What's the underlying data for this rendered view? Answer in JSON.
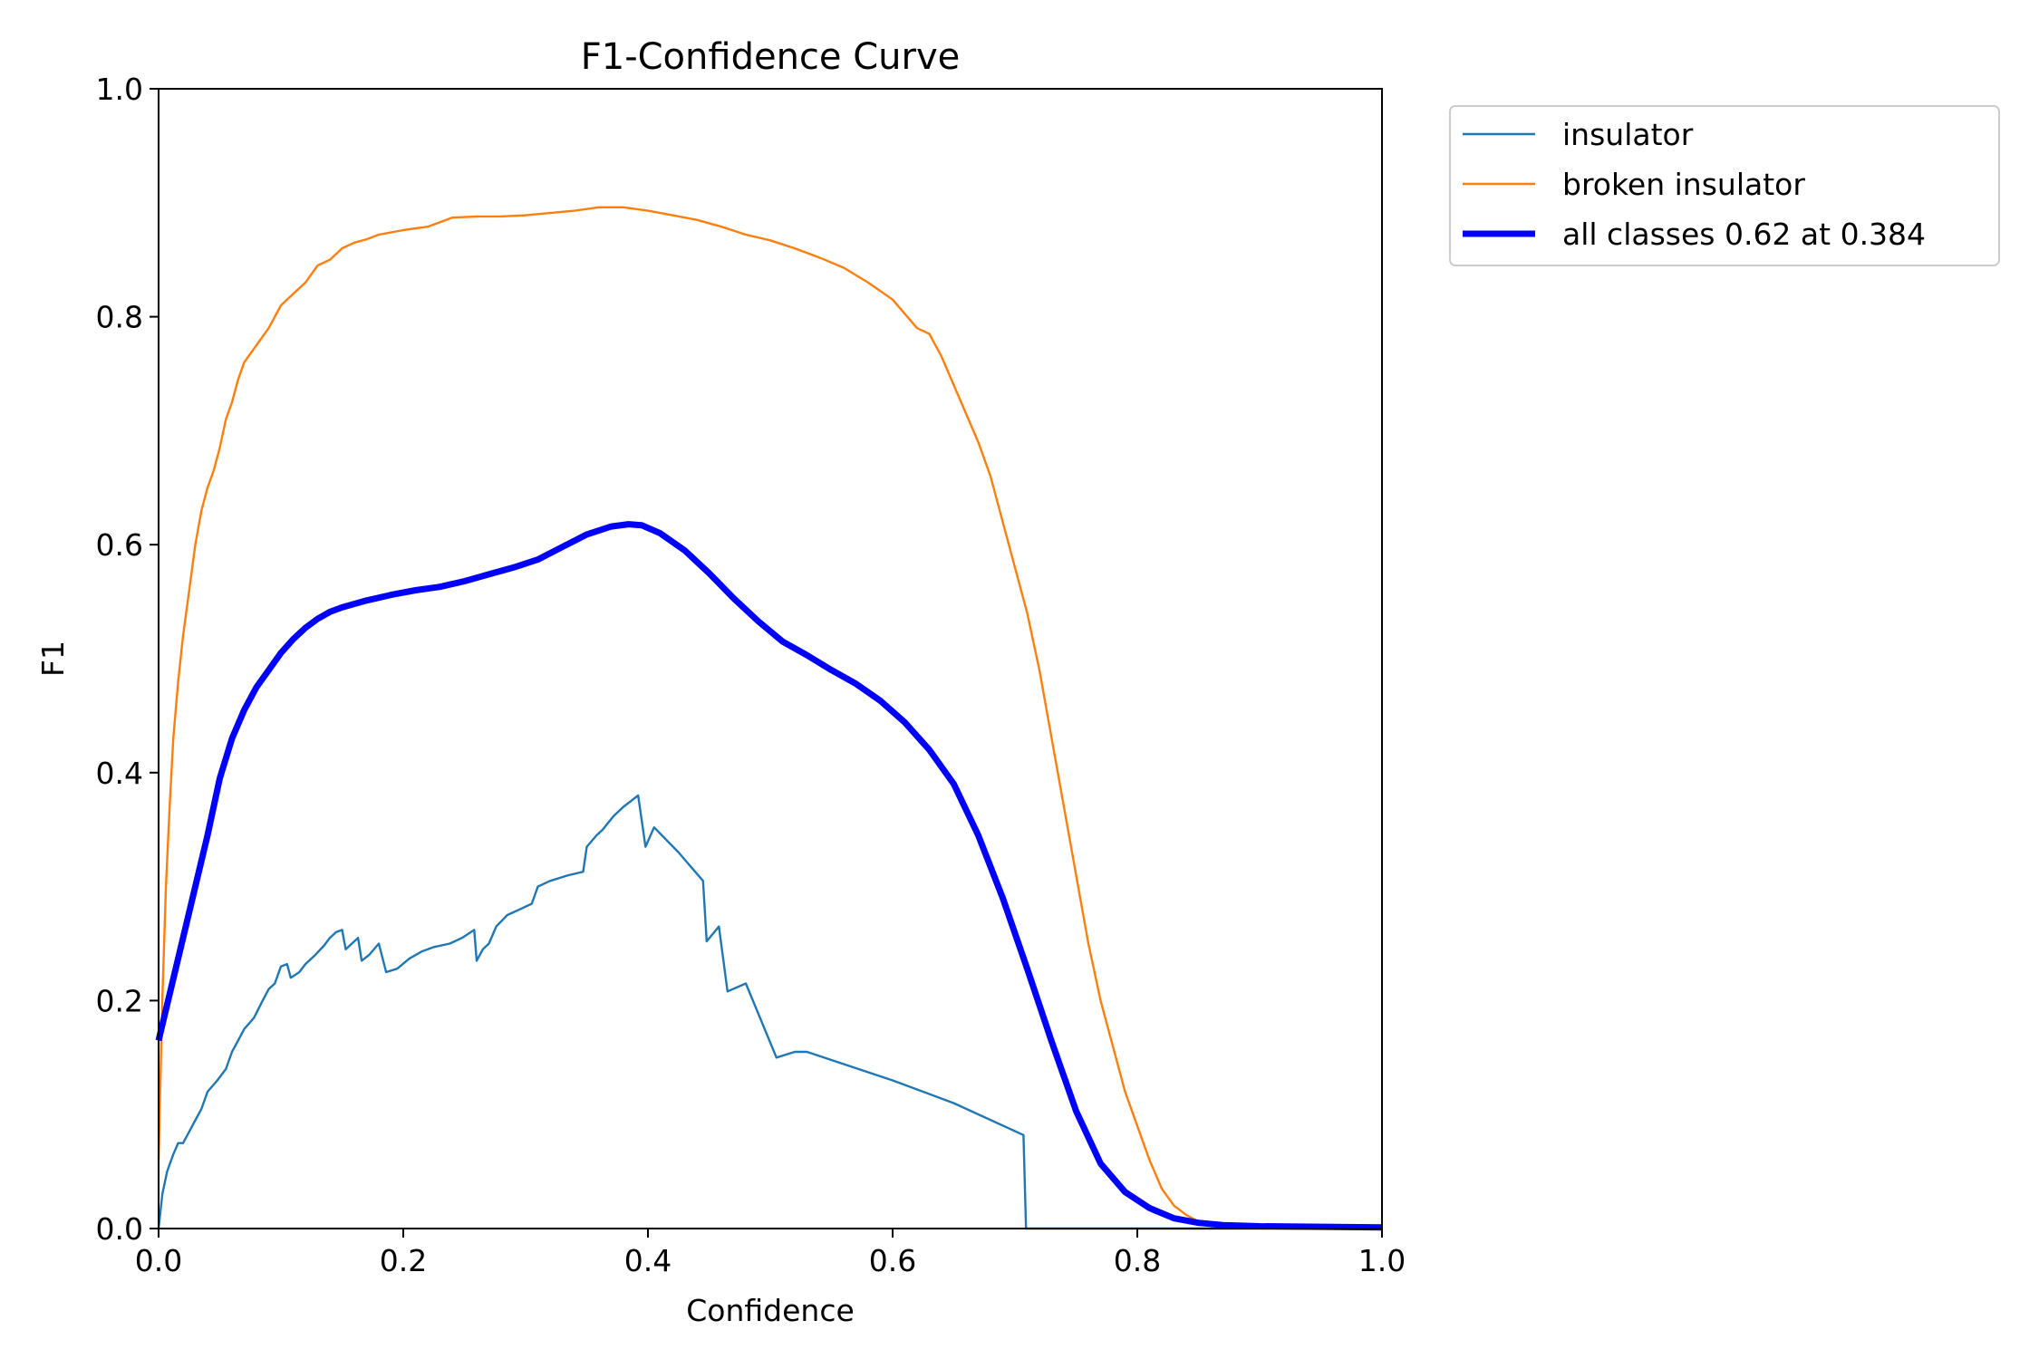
{
  "chart_data": {
    "type": "line",
    "title": "F1-Confidence Curve",
    "xlabel": "Confidence",
    "ylabel": "F1",
    "xlim": [
      0.0,
      1.0
    ],
    "ylim": [
      0.0,
      1.0
    ],
    "xticks": [
      "0.0",
      "0.2",
      "0.4",
      "0.6",
      "0.8",
      "1.0"
    ],
    "yticks": [
      "0.0",
      "0.2",
      "0.4",
      "0.6",
      "0.8",
      "1.0"
    ],
    "grid": false,
    "legend_position": "outside-top-right",
    "series": [
      {
        "name": "insulator",
        "color": "#1f77b4",
        "line_width": "thin",
        "points": [
          [
            0.0,
            0.0
          ],
          [
            0.003,
            0.03
          ],
          [
            0.007,
            0.05
          ],
          [
            0.012,
            0.065
          ],
          [
            0.016,
            0.075
          ],
          [
            0.02,
            0.075
          ],
          [
            0.025,
            0.085
          ],
          [
            0.03,
            0.095
          ],
          [
            0.035,
            0.105
          ],
          [
            0.04,
            0.12
          ],
          [
            0.048,
            0.13
          ],
          [
            0.055,
            0.14
          ],
          [
            0.06,
            0.155
          ],
          [
            0.065,
            0.165
          ],
          [
            0.07,
            0.175
          ],
          [
            0.078,
            0.185
          ],
          [
            0.085,
            0.2
          ],
          [
            0.09,
            0.21
          ],
          [
            0.095,
            0.215
          ],
          [
            0.1,
            0.23
          ],
          [
            0.105,
            0.232
          ],
          [
            0.108,
            0.22
          ],
          [
            0.115,
            0.225
          ],
          [
            0.12,
            0.232
          ],
          [
            0.128,
            0.24
          ],
          [
            0.135,
            0.248
          ],
          [
            0.14,
            0.255
          ],
          [
            0.145,
            0.26
          ],
          [
            0.15,
            0.262
          ],
          [
            0.153,
            0.245
          ],
          [
            0.158,
            0.25
          ],
          [
            0.163,
            0.255
          ],
          [
            0.166,
            0.235
          ],
          [
            0.172,
            0.24
          ],
          [
            0.18,
            0.25
          ],
          [
            0.186,
            0.225
          ],
          [
            0.195,
            0.228
          ],
          [
            0.205,
            0.237
          ],
          [
            0.215,
            0.243
          ],
          [
            0.225,
            0.247
          ],
          [
            0.238,
            0.25
          ],
          [
            0.248,
            0.255
          ],
          [
            0.258,
            0.262
          ],
          [
            0.26,
            0.235
          ],
          [
            0.265,
            0.245
          ],
          [
            0.27,
            0.25
          ],
          [
            0.276,
            0.265
          ],
          [
            0.285,
            0.275
          ],
          [
            0.295,
            0.28
          ],
          [
            0.305,
            0.285
          ],
          [
            0.31,
            0.3
          ],
          [
            0.32,
            0.305
          ],
          [
            0.335,
            0.31
          ],
          [
            0.347,
            0.313
          ],
          [
            0.35,
            0.335
          ],
          [
            0.358,
            0.345
          ],
          [
            0.363,
            0.35
          ],
          [
            0.372,
            0.362
          ],
          [
            0.38,
            0.37
          ],
          [
            0.392,
            0.38
          ],
          [
            0.398,
            0.335
          ],
          [
            0.405,
            0.352
          ],
          [
            0.425,
            0.33
          ],
          [
            0.445,
            0.305
          ],
          [
            0.448,
            0.252
          ],
          [
            0.458,
            0.265
          ],
          [
            0.465,
            0.208
          ],
          [
            0.48,
            0.215
          ],
          [
            0.505,
            0.15
          ],
          [
            0.52,
            0.155
          ],
          [
            0.53,
            0.155
          ],
          [
            0.6,
            0.13
          ],
          [
            0.65,
            0.11
          ],
          [
            0.707,
            0.082
          ],
          [
            0.709,
            0.0
          ],
          [
            0.85,
            0.0
          ],
          [
            1.0,
            0.0
          ]
        ]
      },
      {
        "name": "broken insulator",
        "color": "#ff7f0e",
        "line_width": "thin",
        "points": [
          [
            0.0,
            0.06
          ],
          [
            0.003,
            0.2
          ],
          [
            0.006,
            0.3
          ],
          [
            0.009,
            0.37
          ],
          [
            0.012,
            0.43
          ],
          [
            0.016,
            0.48
          ],
          [
            0.02,
            0.52
          ],
          [
            0.025,
            0.56
          ],
          [
            0.03,
            0.6
          ],
          [
            0.035,
            0.63
          ],
          [
            0.04,
            0.65
          ],
          [
            0.045,
            0.665
          ],
          [
            0.05,
            0.685
          ],
          [
            0.055,
            0.71
          ],
          [
            0.06,
            0.725
          ],
          [
            0.065,
            0.745
          ],
          [
            0.07,
            0.76
          ],
          [
            0.08,
            0.775
          ],
          [
            0.09,
            0.79
          ],
          [
            0.1,
            0.81
          ],
          [
            0.11,
            0.82
          ],
          [
            0.12,
            0.83
          ],
          [
            0.13,
            0.845
          ],
          [
            0.14,
            0.85
          ],
          [
            0.15,
            0.86
          ],
          [
            0.16,
            0.865
          ],
          [
            0.17,
            0.868
          ],
          [
            0.18,
            0.872
          ],
          [
            0.2,
            0.876
          ],
          [
            0.22,
            0.879
          ],
          [
            0.24,
            0.887
          ],
          [
            0.26,
            0.888
          ],
          [
            0.28,
            0.888
          ],
          [
            0.3,
            0.889
          ],
          [
            0.32,
            0.891
          ],
          [
            0.34,
            0.893
          ],
          [
            0.36,
            0.896
          ],
          [
            0.38,
            0.896
          ],
          [
            0.4,
            0.893
          ],
          [
            0.42,
            0.889
          ],
          [
            0.44,
            0.885
          ],
          [
            0.46,
            0.879
          ],
          [
            0.48,
            0.872
          ],
          [
            0.5,
            0.867
          ],
          [
            0.52,
            0.86
          ],
          [
            0.54,
            0.852
          ],
          [
            0.56,
            0.843
          ],
          [
            0.58,
            0.83
          ],
          [
            0.6,
            0.815
          ],
          [
            0.62,
            0.79
          ],
          [
            0.63,
            0.785
          ],
          [
            0.64,
            0.765
          ],
          [
            0.65,
            0.74
          ],
          [
            0.66,
            0.715
          ],
          [
            0.67,
            0.69
          ],
          [
            0.68,
            0.66
          ],
          [
            0.69,
            0.62
          ],
          [
            0.7,
            0.58
          ],
          [
            0.71,
            0.54
          ],
          [
            0.72,
            0.49
          ],
          [
            0.73,
            0.43
          ],
          [
            0.74,
            0.37
          ],
          [
            0.75,
            0.31
          ],
          [
            0.76,
            0.25
          ],
          [
            0.77,
            0.2
          ],
          [
            0.78,
            0.16
          ],
          [
            0.79,
            0.12
          ],
          [
            0.8,
            0.09
          ],
          [
            0.81,
            0.06
          ],
          [
            0.82,
            0.035
          ],
          [
            0.83,
            0.02
          ],
          [
            0.84,
            0.012
          ],
          [
            0.85,
            0.006
          ],
          [
            0.86,
            0.003
          ],
          [
            0.88,
            0.002
          ],
          [
            0.9,
            0.001
          ],
          [
            1.0,
            0.001
          ]
        ]
      },
      {
        "name": "all classes 0.62 at 0.384",
        "color": "#0000ff",
        "line_width": "thick",
        "points": [
          [
            0.0,
            0.165
          ],
          [
            0.01,
            0.21
          ],
          [
            0.02,
            0.255
          ],
          [
            0.03,
            0.3
          ],
          [
            0.04,
            0.345
          ],
          [
            0.05,
            0.395
          ],
          [
            0.06,
            0.43
          ],
          [
            0.07,
            0.455
          ],
          [
            0.08,
            0.475
          ],
          [
            0.09,
            0.49
          ],
          [
            0.1,
            0.505
          ],
          [
            0.11,
            0.517
          ],
          [
            0.12,
            0.527
          ],
          [
            0.13,
            0.535
          ],
          [
            0.14,
            0.541
          ],
          [
            0.15,
            0.545
          ],
          [
            0.17,
            0.551
          ],
          [
            0.19,
            0.556
          ],
          [
            0.21,
            0.56
          ],
          [
            0.23,
            0.563
          ],
          [
            0.25,
            0.568
          ],
          [
            0.27,
            0.574
          ],
          [
            0.29,
            0.58
          ],
          [
            0.31,
            0.587
          ],
          [
            0.33,
            0.598
          ],
          [
            0.35,
            0.609
          ],
          [
            0.37,
            0.616
          ],
          [
            0.384,
            0.618
          ],
          [
            0.395,
            0.617
          ],
          [
            0.41,
            0.61
          ],
          [
            0.43,
            0.595
          ],
          [
            0.45,
            0.575
          ],
          [
            0.47,
            0.553
          ],
          [
            0.49,
            0.533
          ],
          [
            0.51,
            0.515
          ],
          [
            0.53,
            0.503
          ],
          [
            0.55,
            0.49
          ],
          [
            0.57,
            0.478
          ],
          [
            0.59,
            0.463
          ],
          [
            0.61,
            0.444
          ],
          [
            0.63,
            0.42
          ],
          [
            0.65,
            0.39
          ],
          [
            0.67,
            0.345
          ],
          [
            0.69,
            0.29
          ],
          [
            0.71,
            0.228
          ],
          [
            0.73,
            0.164
          ],
          [
            0.75,
            0.103
          ],
          [
            0.77,
            0.057
          ],
          [
            0.79,
            0.032
          ],
          [
            0.81,
            0.018
          ],
          [
            0.83,
            0.009
          ],
          [
            0.85,
            0.005
          ],
          [
            0.87,
            0.003
          ],
          [
            0.9,
            0.002
          ],
          [
            1.0,
            0.001
          ]
        ]
      }
    ]
  }
}
